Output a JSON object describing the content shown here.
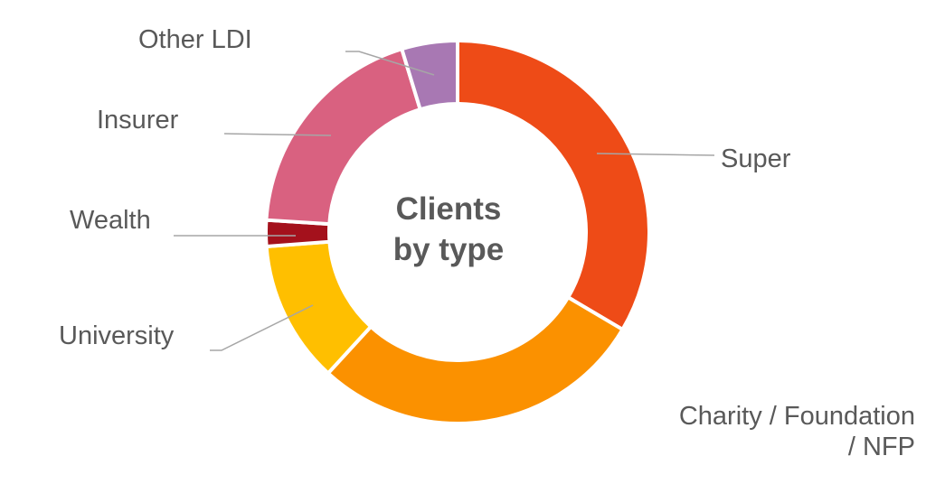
{
  "chart_data": {
    "type": "pie",
    "variant": "donut",
    "title": "Clients by type",
    "title_lines": [
      "Clients",
      "by type"
    ],
    "categories": [
      "Super",
      "Charity / Foundation / NFP",
      "University",
      "Wealth",
      "Insurer",
      "Other LDI"
    ],
    "label_lines": {
      "charity": [
        "Charity / Foundation",
        "/ NFP"
      ]
    },
    "values": [
      33.5,
      28.3,
      12.0,
      2.2,
      19.3,
      4.7
    ],
    "value_unit": "percent (estimated, not printed)",
    "colors": [
      "#EE4B17",
      "#FB9100",
      "#FFBF00",
      "#A4111C",
      "#D96180",
      "#A878B3"
    ],
    "start_angle": "12 o'clock, clockwise",
    "legend": "none (leader-line labels)"
  }
}
